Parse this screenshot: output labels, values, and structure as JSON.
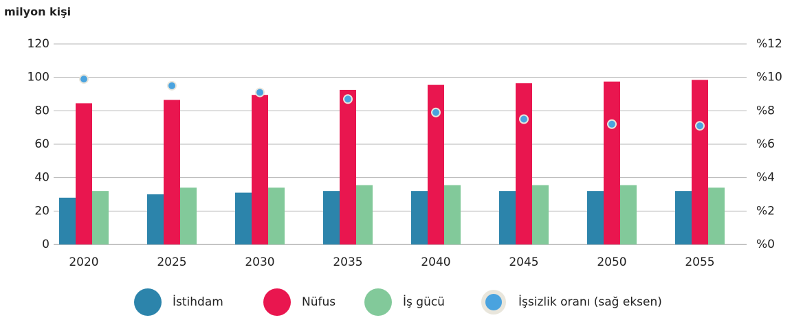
{
  "chart_data": {
    "type": "bar",
    "y_label": "milyon kişi",
    "categories": [
      "2020",
      "2025",
      "2030",
      "2035",
      "2040",
      "2045",
      "2050",
      "2055"
    ],
    "series": [
      {
        "name": "İstihdam",
        "color": "#2c84ab",
        "values": [
          28,
          30,
          31,
          32,
          32,
          32,
          32,
          32
        ]
      },
      {
        "name": "Nüfus",
        "color": "#e9164f",
        "values": [
          84.5,
          86.5,
          89.5,
          92.5,
          95.5,
          96.5,
          97.5,
          98.5
        ]
      },
      {
        "name": "İş gücü",
        "color": "#82c99a",
        "values": [
          32,
          34,
          34,
          35.5,
          35.5,
          35.5,
          35.5,
          34
        ]
      },
      {
        "name": "İşsizlik oranı (sağ eksen)",
        "color": "#4aa3df",
        "axis": "y2",
        "values": [
          9.9,
          9.5,
          9.1,
          8.7,
          7.9,
          7.5,
          7.2,
          7.1
        ]
      }
    ],
    "ylim": [
      0,
      120
    ],
    "yticks": [
      0,
      20,
      40,
      60,
      80,
      100,
      120
    ],
    "y2lim": [
      0,
      12
    ],
    "y2ticks": [
      {
        "value": 0,
        "label": "%0"
      },
      {
        "value": 2,
        "label": "%2"
      },
      {
        "value": 4,
        "label": "%4"
      },
      {
        "value": 6,
        "label": "%6"
      },
      {
        "value": 8,
        "label": "%8"
      },
      {
        "value": 10,
        "label": "%10"
      },
      {
        "value": 12,
        "label": "%12"
      }
    ],
    "grid": true,
    "legend": "bottom"
  }
}
